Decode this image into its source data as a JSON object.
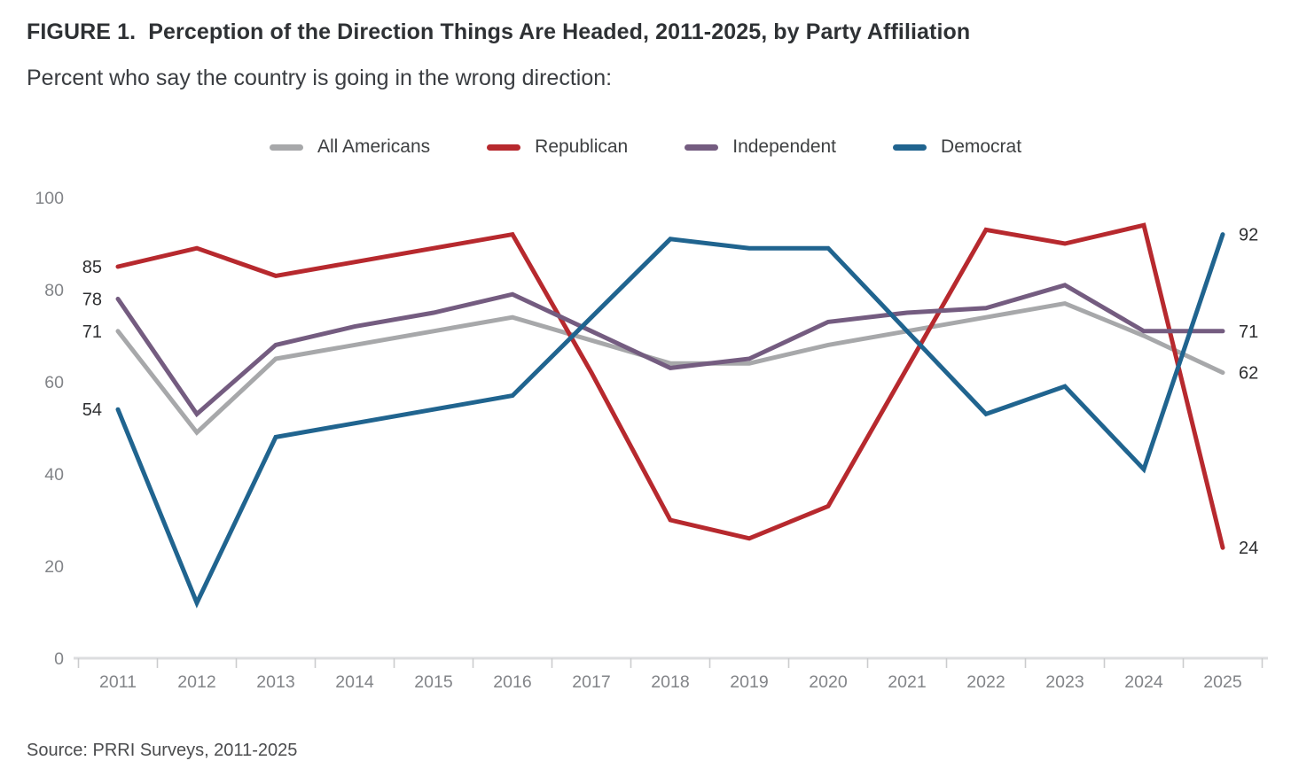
{
  "figure": {
    "title": "FIGURE 1.  Perception of the Direction Things Are Headed, 2011-2025, by Party Affiliation",
    "subtitle": "Percent who say the country is going in the wrong direction:",
    "source": "Source: PRRI Surveys, 2011-2025"
  },
  "colors": {
    "title_text": "#2e3134",
    "subtitle_text": "#3a3d41",
    "legend_text": "#3e4042",
    "axis_tick_text": "#828488",
    "endpoint_label_text": "#2d2e30",
    "axis_line": "#dcdddf",
    "tick_mark": "#cbccce",
    "source_text": "#4b4c4e",
    "background": "#ffffff"
  },
  "chart_data": {
    "type": "line",
    "title": "Perception of the Direction Things Are Headed, 2011-2025, by Party Affiliation",
    "subtitle": "Percent who say the country is going in the wrong direction:",
    "x": [
      2011,
      2012,
      2013,
      2014,
      2015,
      2016,
      2017,
      2018,
      2019,
      2020,
      2021,
      2022,
      2023,
      2024,
      2025
    ],
    "series": [
      {
        "name": "All Americans",
        "color": "#a7a8aa",
        "values": [
          71,
          49,
          65,
          68,
          71,
          74,
          69,
          64,
          64,
          68,
          71,
          74,
          77,
          70,
          62
        ]
      },
      {
        "name": "Republican",
        "color": "#b7292e",
        "values": [
          85,
          89,
          83,
          86,
          89,
          92,
          62,
          30,
          26,
          33,
          63,
          93,
          90,
          94,
          24
        ]
      },
      {
        "name": "Independent",
        "color": "#745c80",
        "values": [
          78,
          53,
          68,
          72,
          75,
          79,
          71,
          63,
          65,
          73,
          75,
          76,
          81,
          71,
          71
        ]
      },
      {
        "name": "Democrat",
        "color": "#20648f",
        "values": [
          54,
          12,
          48,
          51,
          54,
          57,
          74,
          91,
          89,
          89,
          71,
          53,
          59,
          41,
          92
        ]
      }
    ],
    "left_endpoint_labels": [
      "71",
      "85",
      "78",
      "54"
    ],
    "right_endpoint_labels": [
      "62",
      "24",
      "71",
      "92"
    ],
    "xlabel": "",
    "ylabel": "",
    "ylim": [
      0,
      100
    ],
    "yticks": [
      0,
      20,
      40,
      60,
      80,
      100
    ],
    "grid": false,
    "legend_position": "top"
  }
}
